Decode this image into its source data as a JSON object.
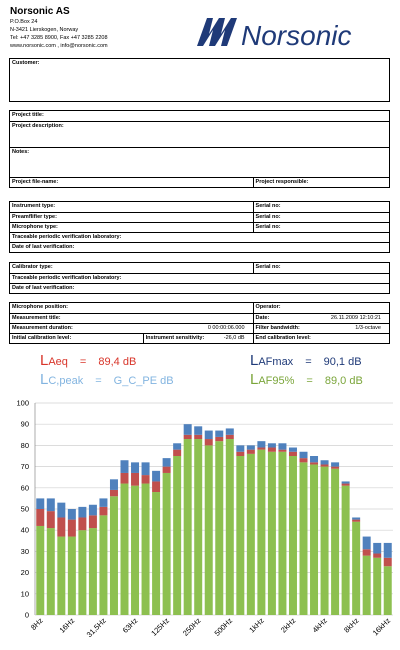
{
  "header": {
    "company": "Norsonic AS",
    "address": [
      "P.O.Box 24",
      "N-3421 Lierskogen, Norway",
      "Tel: +47 3285 8900, Fax +47 3285 2208",
      "www.norsonic.com , info@norsonic.com"
    ],
    "logo": "Norsonic"
  },
  "sections": [
    {
      "rows": [
        [
          {
            "label": "Customer:"
          }
        ]
      ]
    },
    {
      "rows": [
        [
          {
            "label": "Project title:"
          }
        ],
        [
          {
            "label": "Project description:"
          }
        ],
        [
          {
            "label": "Notes:"
          }
        ],
        [
          {
            "label": "Project file-name:"
          },
          {
            "label": "Project responsible:"
          }
        ]
      ]
    },
    {
      "rows": [
        [
          {
            "label": "Instrument type:"
          },
          {
            "label": "Serial no:"
          }
        ],
        [
          {
            "label": "Preamflifier type:"
          },
          {
            "label": "Serial no:"
          }
        ],
        [
          {
            "label": "Microphone type:"
          },
          {
            "label": "Serial no:"
          }
        ],
        [
          {
            "label": "Traceable periodic verification laboratory:"
          }
        ],
        [
          {
            "label": "Date of last verification:"
          }
        ]
      ]
    },
    {
      "rows": [
        [
          {
            "label": "Calibrator type:"
          },
          {
            "label": "Serial no:"
          }
        ],
        [
          {
            "label": "Traceable periodic verification laboratory:"
          }
        ],
        [
          {
            "label": "Date of last verification:"
          }
        ]
      ]
    },
    {
      "rows": [
        [
          {
            "label": "Microphone position:"
          },
          {
            "label": "Operator:"
          }
        ],
        [
          {
            "label": "Measurement title:"
          },
          {
            "label": "Date:",
            "value": "26.11.2009 12:10:21"
          }
        ],
        [
          {
            "label": "Measurement duration:",
            "value": "0 00:00:06.000"
          },
          {
            "label": "Filter bandwidth:",
            "value": "1/3-octave"
          }
        ],
        [
          {
            "label": "Initial calibration level:"
          },
          {
            "label": "Instrument sensitivity:",
            "value": "-26,0 dB"
          },
          {
            "label": "End calibration level:"
          }
        ]
      ]
    }
  ],
  "summary": [
    {
      "label": "LAeq",
      "sign": "=",
      "value": "89,4 dB",
      "color": "#d8352a"
    },
    {
      "label": "LAFmax",
      "sign": "=",
      "value": "90,1 dB",
      "color": "#1f3a78"
    },
    {
      "label": "LC,peak",
      "sign": "=",
      "value": "G_C_PE dB",
      "color": "#82b4e0"
    },
    {
      "label": "LAF95%",
      "sign": "=",
      "value": "89,0 dB",
      "color": "#7aa53a"
    }
  ],
  "chart_data": {
    "type": "stacked_bar",
    "categories": [
      "8Hz",
      null,
      null,
      "16Hz",
      null,
      null,
      "31,5Hz",
      null,
      null,
      "63Hz",
      null,
      null,
      "125Hz",
      null,
      null,
      "250Hz",
      null,
      null,
      "500Hz",
      null,
      null,
      "1kHz",
      null,
      null,
      "2kHz",
      null,
      null,
      "4kHz",
      null,
      null,
      "8kHz",
      null,
      null,
      "16kHz"
    ],
    "series": [
      {
        "color": "#8dc050",
        "values": [
          42,
          41,
          37,
          37,
          40,
          41,
          47,
          56,
          62,
          61,
          62,
          58,
          67,
          75,
          83,
          83,
          80,
          82,
          83,
          75,
          76,
          78,
          77,
          77,
          75,
          72,
          71,
          70,
          69,
          61,
          44,
          28,
          27,
          23
        ]
      },
      {
        "color": "#c0504d",
        "values": [
          8,
          8,
          9,
          8,
          6,
          6,
          4,
          3,
          5,
          6,
          4,
          5,
          3,
          3,
          2,
          2,
          3,
          2,
          2,
          2,
          2,
          1,
          2,
          1,
          2,
          2,
          1,
          1,
          1,
          1,
          1,
          3,
          2,
          4
        ]
      },
      {
        "color": "#4f81bd",
        "values": [
          5,
          6,
          7,
          5,
          5,
          5,
          4,
          5,
          6,
          5,
          6,
          5,
          4,
          3,
          5,
          4,
          4,
          3,
          3,
          3,
          2,
          3,
          2,
          3,
          2,
          3,
          3,
          2,
          2,
          1,
          1,
          6,
          5,
          7
        ]
      }
    ],
    "ylim": [
      0,
      100
    ],
    "yticks": [
      0,
      10,
      20,
      30,
      40,
      50,
      60,
      70,
      80,
      90,
      100
    ],
    "grid": true
  }
}
